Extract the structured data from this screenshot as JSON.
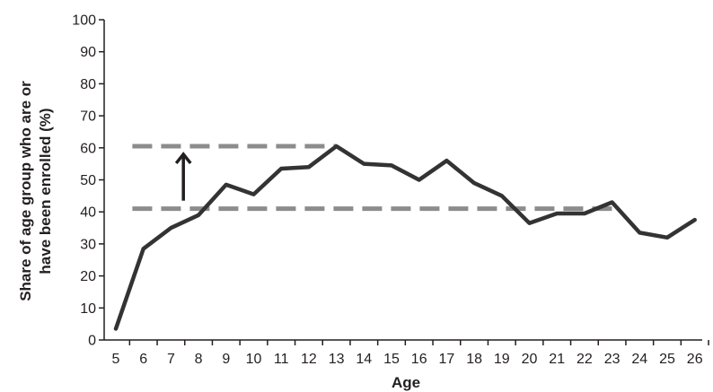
{
  "chart_data": {
    "type": "line",
    "xlabel": "Age",
    "ylabel_lines": [
      "Share of age group who are or",
      "have been enrolled (%)"
    ],
    "x": [
      5,
      6,
      7,
      8,
      9,
      10,
      11,
      12,
      13,
      14,
      15,
      16,
      17,
      18,
      19,
      20,
      21,
      22,
      23,
      24,
      25,
      26
    ],
    "x_tick_labels": [
      "5",
      "6",
      "7",
      "8",
      "9",
      "10",
      "11",
      "12",
      "13",
      "14",
      "15",
      "16",
      "17",
      "18",
      "19",
      "20",
      "21",
      "22",
      "23",
      "24",
      "25",
      "26"
    ],
    "series": [
      {
        "values": [
          3.5,
          28.5,
          35,
          39,
          48.5,
          45.5,
          53.5,
          54,
          60.5,
          55,
          54.5,
          50,
          56,
          49,
          45,
          36.5,
          39.5,
          39.5,
          43,
          33.5,
          32,
          37.5
        ]
      }
    ],
    "ylim": [
      0,
      100
    ],
    "y_ticks": [
      0,
      10,
      20,
      30,
      40,
      50,
      60,
      70,
      80,
      90,
      100
    ],
    "y_tick_labels": [
      "0",
      "10",
      "20",
      "30",
      "40",
      "50",
      "60",
      "70",
      "80",
      "90",
      "100"
    ],
    "reference_lines": [
      {
        "y": 60.5,
        "x_from": 5.6,
        "x_to": 13,
        "style": "dashed"
      },
      {
        "y": 41,
        "x_from": 5.6,
        "x_to": 23,
        "style": "dashed"
      }
    ],
    "arrow": {
      "x": 7.45,
      "y_from": 43.5,
      "y_to": 58,
      "direction": "up"
    },
    "grid": false,
    "colors": {
      "line": "#333333",
      "dashed": "#8c8c8c",
      "axis": "#231f20",
      "arrow": "#231f20"
    }
  }
}
